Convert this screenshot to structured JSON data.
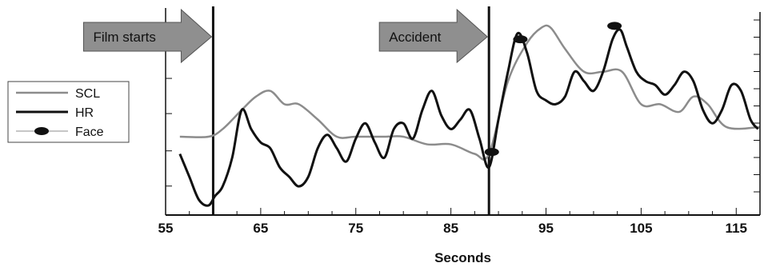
{
  "chart_data": {
    "type": "line",
    "xlabel": "Seconds",
    "ylabel": "",
    "xlim": [
      55,
      117.5
    ],
    "ylim": [
      0,
      10
    ],
    "xticks": [
      55,
      65,
      75,
      85,
      95,
      105,
      115
    ],
    "grid": false,
    "legend": {
      "placement": "left",
      "entries": [
        "SCL",
        "HR",
        "Face"
      ]
    },
    "series": [
      {
        "name": "SCL",
        "color": "#8c8c8c",
        "x": [
          56.5,
          59.5,
          61,
          63,
          64.5,
          66,
          67.5,
          69,
          71,
          73,
          75,
          78,
          80,
          82.5,
          85,
          87.5,
          89,
          91,
          93,
          94.5,
          95.5,
          97,
          99,
          101,
          103,
          105,
          107,
          109,
          110.5,
          112,
          114,
          117.5
        ],
        "values": [
          4.1,
          4.1,
          4.5,
          5.5,
          6.2,
          6.5,
          5.8,
          5.8,
          5.0,
          4.1,
          4.1,
          4.1,
          4.1,
          3.7,
          3.7,
          3.2,
          3.2,
          7.0,
          9.0,
          9.8,
          9.8,
          8.7,
          7.5,
          7.5,
          7.5,
          5.8,
          5.8,
          5.4,
          6.2,
          5.8,
          4.6,
          4.6
        ]
      },
      {
        "name": "HR",
        "color": "#111111",
        "x": [
          56.5,
          57.5,
          58.5,
          59.5,
          60.2,
          61,
          62,
          63,
          64,
          65,
          66,
          67,
          68,
          69,
          70,
          71,
          72,
          73,
          74,
          75,
          76,
          77,
          78,
          79,
          80,
          81,
          82,
          83,
          84,
          85,
          86,
          87,
          88,
          89,
          90,
          91,
          92,
          93,
          94,
          95,
          96,
          97,
          98,
          99,
          100,
          101,
          102,
          102.8,
          103.5,
          104.5,
          105.5,
          106.5,
          107.5,
          108.5,
          109.5,
          110.5,
          111.5,
          112.5,
          113.5,
          114.5,
          115.5,
          116.5,
          117.3
        ],
        "values": [
          3.2,
          2.0,
          0.8,
          0.5,
          1.0,
          1.5,
          3.0,
          5.5,
          4.5,
          3.8,
          3.5,
          2.5,
          2.0,
          1.5,
          2.0,
          3.5,
          4.2,
          3.5,
          2.8,
          4.0,
          4.8,
          3.8,
          3.0,
          4.5,
          4.8,
          4.0,
          5.5,
          6.5,
          5.2,
          4.5,
          5.0,
          5.5,
          4.0,
          2.5,
          5.0,
          7.5,
          9.5,
          8.5,
          6.5,
          6.0,
          5.8,
          6.2,
          7.5,
          7.0,
          6.5,
          7.5,
          9.2,
          9.7,
          8.8,
          7.5,
          7.0,
          6.8,
          6.3,
          6.8,
          7.5,
          7.0,
          5.5,
          4.8,
          5.5,
          6.8,
          6.5,
          5.0,
          4.5
        ]
      },
      {
        "name": "Face",
        "color": "#111111",
        "x": [
          89.3,
          92.3,
          102.2
        ],
        "values": [
          3.3,
          9.2,
          9.9
        ]
      }
    ],
    "annotations": [
      {
        "label": "Film starts",
        "x": 60
      },
      {
        "label": "Accident",
        "x": 89
      }
    ]
  }
}
